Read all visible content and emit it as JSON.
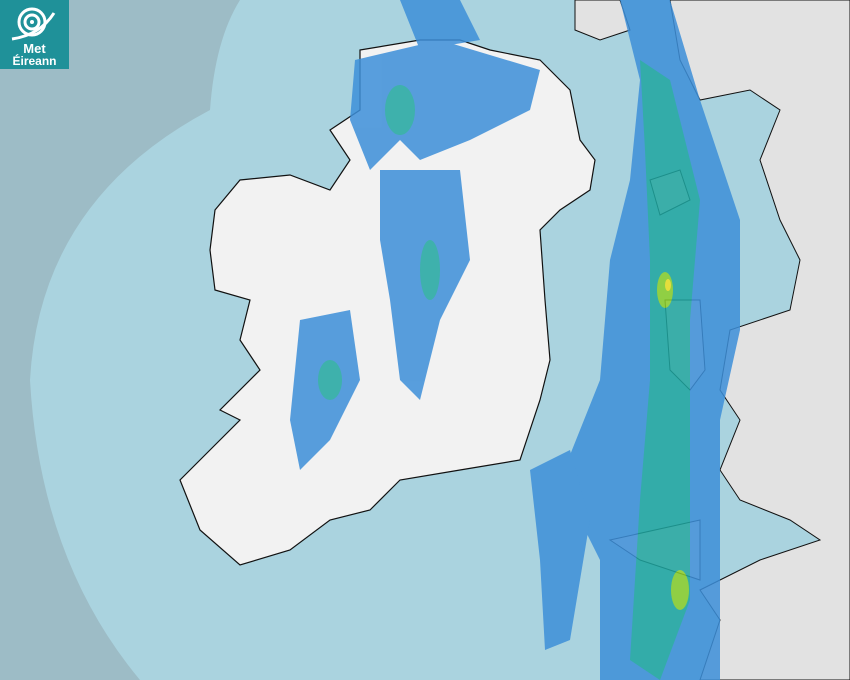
{
  "logo": {
    "line1": "Met",
    "line2": "Éireann",
    "color": "#1f9199"
  },
  "map": {
    "type": "rainfall radar",
    "colors": {
      "outside_range": "#9dbcc6",
      "sea": "#aad3df",
      "land": "#f2f2f2",
      "rain_light": "#3d8fd9",
      "rain_moderate": "#1fa6a0",
      "rain_heavy": "#8ccf2a",
      "rain_very_heavy": "#f0e020"
    }
  }
}
